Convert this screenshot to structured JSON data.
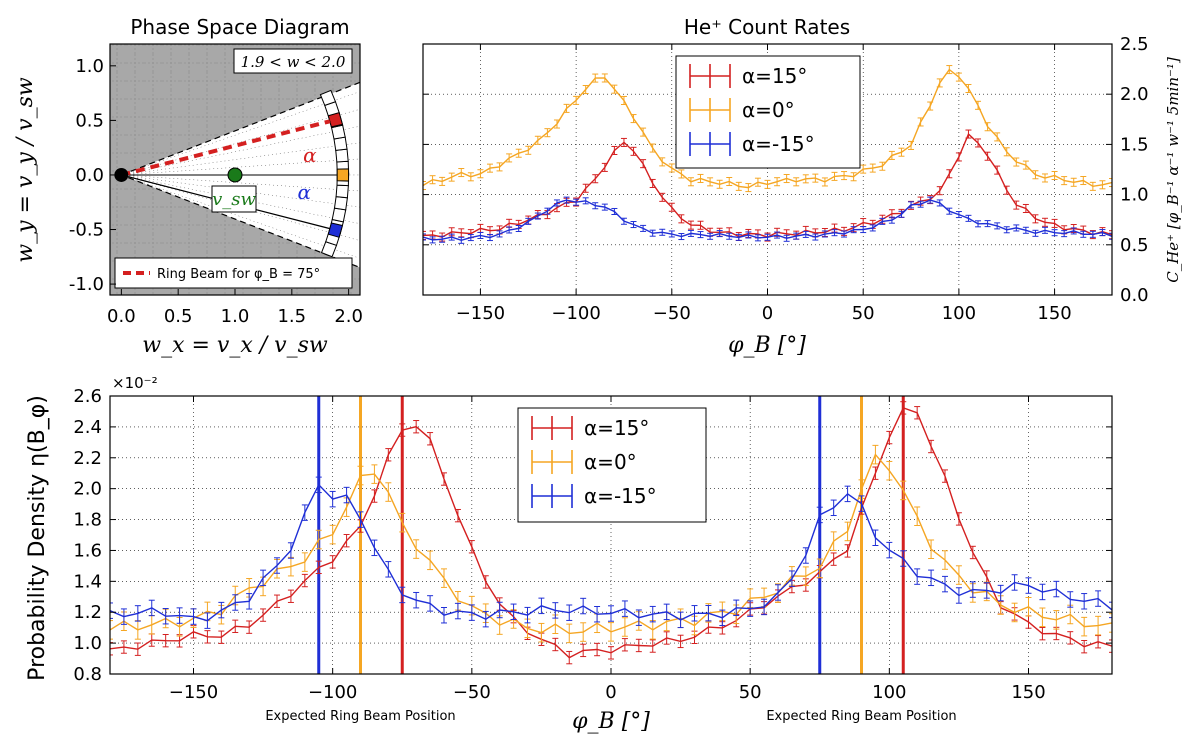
{
  "colors": {
    "red": "#d42020",
    "orange": "#f5a623",
    "blue": "#1f2fd6",
    "green": "#1a7a1a",
    "gray": "#a8a8a8"
  },
  "chart_data": [
    {
      "id": "phase",
      "type": "diagram",
      "title": "Phase Space Diagram",
      "xlabel": "w_x = v_x / v_sw",
      "ylabel": "w_y = v_y / v_sw",
      "xlim": [
        -0.1,
        2.1
      ],
      "ylim": [
        -1.1,
        1.2
      ],
      "xticks": [
        "0.0",
        "0.5",
        "1.0",
        "1.5",
        "2.0"
      ],
      "yticks": [
        "-1.0",
        "-0.5",
        "0.0",
        "0.5",
        "1.0"
      ],
      "range_label": "1.9 < w < 2.0",
      "ring_radius": 1.95,
      "alpha_label": "α",
      "vsw_label": "v_sw",
      "legend": "Ring Beam for φ_B = 75°",
      "markers": [
        {
          "name": "alpha-15",
          "angle_deg": 15,
          "color": "red"
        },
        {
          "name": "alpha0",
          "angle_deg": 0,
          "color": "orange"
        },
        {
          "name": "alpha-neg15",
          "angle_deg": -15,
          "color": "blue"
        }
      ],
      "sw_point": [
        1.0,
        0.0
      ],
      "origin_point": [
        0.0,
        0.0
      ]
    },
    {
      "id": "count",
      "type": "line",
      "title": "He⁺ Count Rates",
      "xlabel": "φ_B [°]",
      "ylabel": "C_He⁺ [φ_B⁻¹ α⁻¹ w⁻¹ 5min⁻¹]",
      "xlim": [
        -180,
        180
      ],
      "ylim": [
        0,
        2.5
      ],
      "xticks": [
        "-150",
        "-100",
        "-50",
        "0",
        "50",
        "100",
        "150"
      ],
      "yticks": [
        "0.0",
        "0.5",
        "1.0",
        "1.5",
        "2.0",
        "2.5"
      ],
      "legend": [
        "α=15°",
        "α=0°",
        "α=-15°"
      ],
      "series": [
        {
          "name": "α=15°",
          "color": "red",
          "err": 0.04,
          "points": [
            [
              -180,
              0.58
            ],
            [
              -160,
              0.62
            ],
            [
              -140,
              0.66
            ],
            [
              -120,
              0.78
            ],
            [
              -100,
              0.95
            ],
            [
              -90,
              1.15
            ],
            [
              -82,
              1.38
            ],
            [
              -75,
              1.52
            ],
            [
              -70,
              1.45
            ],
            [
              -60,
              1.12
            ],
            [
              -50,
              0.85
            ],
            [
              -40,
              0.7
            ],
            [
              -25,
              0.62
            ],
            [
              -10,
              0.6
            ],
            [
              0,
              0.6
            ],
            [
              20,
              0.62
            ],
            [
              40,
              0.65
            ],
            [
              60,
              0.75
            ],
            [
              75,
              0.88
            ],
            [
              90,
              1.02
            ],
            [
              98,
              1.32
            ],
            [
              105,
              1.58
            ],
            [
              112,
              1.5
            ],
            [
              120,
              1.22
            ],
            [
              130,
              0.9
            ],
            [
              145,
              0.72
            ],
            [
              160,
              0.65
            ],
            [
              180,
              0.6
            ]
          ]
        },
        {
          "name": "α=0°",
          "color": "orange",
          "err": 0.04,
          "points": [
            [
              -180,
              1.1
            ],
            [
              -170,
              1.15
            ],
            [
              -160,
              1.2
            ],
            [
              -150,
              1.2
            ],
            [
              -135,
              1.35
            ],
            [
              -120,
              1.52
            ],
            [
              -110,
              1.72
            ],
            [
              -100,
              1.95
            ],
            [
              -92,
              2.12
            ],
            [
              -85,
              2.18
            ],
            [
              -78,
              2.0
            ],
            [
              -70,
              1.78
            ],
            [
              -60,
              1.45
            ],
            [
              -50,
              1.25
            ],
            [
              -40,
              1.15
            ],
            [
              -25,
              1.12
            ],
            [
              -10,
              1.08
            ],
            [
              0,
              1.12
            ],
            [
              15,
              1.15
            ],
            [
              30,
              1.15
            ],
            [
              45,
              1.2
            ],
            [
              60,
              1.3
            ],
            [
              75,
              1.5
            ],
            [
              85,
              1.9
            ],
            [
              92,
              2.2
            ],
            [
              98,
              2.25
            ],
            [
              105,
              2.05
            ],
            [
              115,
              1.7
            ],
            [
              125,
              1.42
            ],
            [
              140,
              1.2
            ],
            [
              155,
              1.15
            ],
            [
              170,
              1.1
            ],
            [
              180,
              1.1
            ]
          ]
        },
        {
          "name": "α=-15°",
          "color": "blue",
          "err": 0.03,
          "points": [
            [
              -180,
              0.56
            ],
            [
              -160,
              0.56
            ],
            [
              -140,
              0.6
            ],
            [
              -125,
              0.72
            ],
            [
              -115,
              0.85
            ],
            [
              -105,
              0.95
            ],
            [
              -95,
              0.92
            ],
            [
              -85,
              0.88
            ],
            [
              -75,
              0.75
            ],
            [
              -65,
              0.65
            ],
            [
              -50,
              0.6
            ],
            [
              -30,
              0.6
            ],
            [
              -10,
              0.58
            ],
            [
              10,
              0.58
            ],
            [
              30,
              0.6
            ],
            [
              50,
              0.65
            ],
            [
              65,
              0.75
            ],
            [
              75,
              0.88
            ],
            [
              85,
              0.95
            ],
            [
              95,
              0.85
            ],
            [
              105,
              0.75
            ],
            [
              120,
              0.68
            ],
            [
              140,
              0.63
            ],
            [
              160,
              0.62
            ],
            [
              180,
              0.6
            ]
          ]
        }
      ]
    },
    {
      "id": "prob",
      "type": "line",
      "multiplier": "×10⁻²",
      "xlabel": "φ_B [°]",
      "ylabel": "Probability Density η(B_φ)",
      "xlim": [
        -180,
        180
      ],
      "ylim": [
        0.8,
        2.6
      ],
      "xticks": [
        "-150",
        "-100",
        "-50",
        "0",
        "50",
        "100",
        "150"
      ],
      "yticks": [
        "0.8",
        "1.0",
        "1.2",
        "1.4",
        "1.6",
        "1.8",
        "2.0",
        "2.2",
        "2.4",
        "2.6"
      ],
      "legend": [
        "α=15°",
        "α=0°",
        "α=-15°"
      ],
      "vlines": [
        {
          "x": -105,
          "color": "blue"
        },
        {
          "x": -90,
          "color": "orange"
        },
        {
          "x": -75,
          "color": "red"
        },
        {
          "x": 75,
          "color": "blue"
        },
        {
          "x": 90,
          "color": "orange"
        },
        {
          "x": 105,
          "color": "red"
        }
      ],
      "annotations": [
        {
          "text": "Expected Ring Beam Position",
          "x": -90
        },
        {
          "text": "Expected Ring Beam Position",
          "x": 90
        }
      ],
      "series": [
        {
          "name": "α=15°",
          "color": "red",
          "err": 0.04,
          "points": [
            [
              -180,
              0.95
            ],
            [
              -165,
              1.0
            ],
            [
              -150,
              1.05
            ],
            [
              -140,
              1.05
            ],
            [
              -130,
              1.12
            ],
            [
              -120,
              1.25
            ],
            [
              -110,
              1.4
            ],
            [
              -100,
              1.55
            ],
            [
              -90,
              1.75
            ],
            [
              -80,
              2.2
            ],
            [
              -75,
              2.38
            ],
            [
              -70,
              2.42
            ],
            [
              -65,
              2.3
            ],
            [
              -58,
              1.98
            ],
            [
              -50,
              1.6
            ],
            [
              -42,
              1.3
            ],
            [
              -35,
              1.15
            ],
            [
              -25,
              1.02
            ],
            [
              -15,
              0.93
            ],
            [
              -5,
              0.95
            ],
            [
              5,
              0.97
            ],
            [
              15,
              1.0
            ],
            [
              25,
              1.02
            ],
            [
              35,
              1.08
            ],
            [
              45,
              1.15
            ],
            [
              55,
              1.25
            ],
            [
              65,
              1.35
            ],
            [
              75,
              1.45
            ],
            [
              85,
              1.62
            ],
            [
              92,
              1.95
            ],
            [
              100,
              2.35
            ],
            [
              105,
              2.5
            ],
            [
              110,
              2.5
            ],
            [
              117,
              2.2
            ],
            [
              125,
              1.82
            ],
            [
              132,
              1.5
            ],
            [
              140,
              1.25
            ],
            [
              150,
              1.12
            ],
            [
              160,
              1.05
            ],
            [
              170,
              1.0
            ],
            [
              180,
              0.98
            ]
          ]
        },
        {
          "name": "α=0°",
          "color": "orange",
          "err": 0.06,
          "points": [
            [
              -180,
              1.1
            ],
            [
              -165,
              1.12
            ],
            [
              -150,
              1.15
            ],
            [
              -140,
              1.22
            ],
            [
              -130,
              1.35
            ],
            [
              -120,
              1.45
            ],
            [
              -110,
              1.55
            ],
            [
              -100,
              1.72
            ],
            [
              -92,
              2.0
            ],
            [
              -86,
              2.15
            ],
            [
              -80,
              1.98
            ],
            [
              -75,
              1.75
            ],
            [
              -68,
              1.6
            ],
            [
              -60,
              1.4
            ],
            [
              -50,
              1.22
            ],
            [
              -40,
              1.15
            ],
            [
              -30,
              1.1
            ],
            [
              -15,
              1.08
            ],
            [
              0,
              1.1
            ],
            [
              15,
              1.12
            ],
            [
              30,
              1.15
            ],
            [
              45,
              1.22
            ],
            [
              55,
              1.3
            ],
            [
              65,
              1.4
            ],
            [
              75,
              1.5
            ],
            [
              85,
              1.75
            ],
            [
              92,
              2.1
            ],
            [
              97,
              2.25
            ],
            [
              103,
              2.05
            ],
            [
              110,
              1.8
            ],
            [
              118,
              1.55
            ],
            [
              128,
              1.38
            ],
            [
              140,
              1.25
            ],
            [
              150,
              1.2
            ],
            [
              165,
              1.15
            ],
            [
              180,
              1.1
            ]
          ]
        },
        {
          "name": "α=-15°",
          "color": "blue",
          "err": 0.05,
          "points": [
            [
              -180,
              1.18
            ],
            [
              -170,
              1.2
            ],
            [
              -160,
              1.2
            ],
            [
              -150,
              1.15
            ],
            [
              -140,
              1.2
            ],
            [
              -130,
              1.3
            ],
            [
              -120,
              1.5
            ],
            [
              -112,
              1.7
            ],
            [
              -106,
              2.05
            ],
            [
              -100,
              1.95
            ],
            [
              -93,
              1.92
            ],
            [
              -88,
              1.75
            ],
            [
              -82,
              1.5
            ],
            [
              -76,
              1.35
            ],
            [
              -68,
              1.25
            ],
            [
              -58,
              1.2
            ],
            [
              -48,
              1.18
            ],
            [
              -35,
              1.2
            ],
            [
              -20,
              1.22
            ],
            [
              0,
              1.2
            ],
            [
              20,
              1.18
            ],
            [
              35,
              1.18
            ],
            [
              50,
              1.22
            ],
            [
              60,
              1.3
            ],
            [
              68,
              1.5
            ],
            [
              75,
              1.8
            ],
            [
              83,
              1.95
            ],
            [
              87,
              2.0
            ],
            [
              93,
              1.75
            ],
            [
              100,
              1.6
            ],
            [
              108,
              1.48
            ],
            [
              118,
              1.38
            ],
            [
              128,
              1.32
            ],
            [
              140,
              1.35
            ],
            [
              150,
              1.38
            ],
            [
              160,
              1.32
            ],
            [
              170,
              1.28
            ],
            [
              180,
              1.24
            ]
          ]
        }
      ]
    }
  ]
}
